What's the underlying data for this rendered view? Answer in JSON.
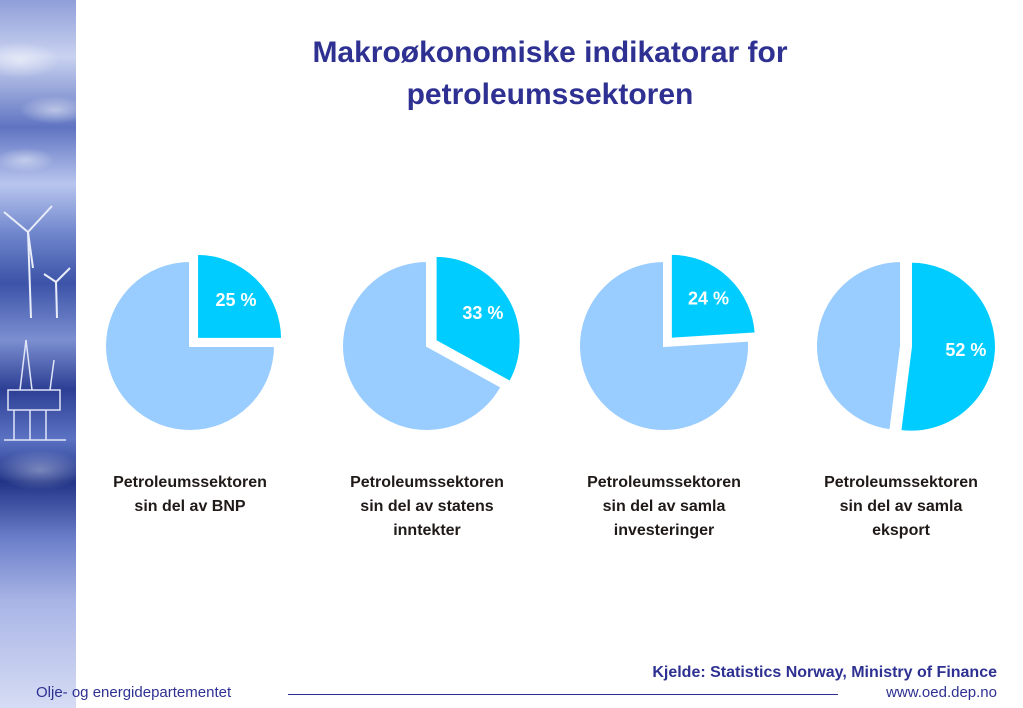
{
  "title": {
    "line1": "Makroøkonomiske indikatorar for",
    "line2": "petroleumssektoren"
  },
  "colors": {
    "title": "#2e3192",
    "highlight_slice": "#00ccff",
    "rest_slice": "#99ccff",
    "label": "#ffffff"
  },
  "chart_data": [
    {
      "type": "pie",
      "title": "",
      "caption_lines": [
        "Petroleumssektoren",
        "sin del av BNP"
      ],
      "slices": [
        {
          "label": "25 %",
          "value": 25,
          "exploded": true
        },
        {
          "label": "",
          "value": 75,
          "exploded": false
        }
      ]
    },
    {
      "type": "pie",
      "title": "",
      "caption_lines": [
        "Petroleumssektoren",
        "sin del av statens",
        "inntekter"
      ],
      "slices": [
        {
          "label": "33 %",
          "value": 33,
          "exploded": true
        },
        {
          "label": "",
          "value": 67,
          "exploded": false
        }
      ]
    },
    {
      "type": "pie",
      "title": "",
      "caption_lines": [
        "Petroleumssektoren",
        "sin del av samla",
        "investeringer"
      ],
      "slices": [
        {
          "label": "24 %",
          "value": 24,
          "exploded": true
        },
        {
          "label": "",
          "value": 76,
          "exploded": false
        }
      ]
    },
    {
      "type": "pie",
      "title": "",
      "caption_lines": [
        "Petroleumssektoren",
        "sin del av samla",
        "eksport"
      ],
      "slices": [
        {
          "label": "52 %",
          "value": 52,
          "exploded": true
        },
        {
          "label": "",
          "value": 48,
          "exploded": false
        }
      ]
    }
  ],
  "source": "Kjelde: Statistics Norway, Ministry of Finance",
  "footer": {
    "organization": "Olje- og energidepartementet",
    "url": "www.oed.dep.no"
  },
  "sidebar": {
    "icons": [
      "clouds-photo",
      "wind-turbine-icon",
      "offshore-platform-icon",
      "sea-photo"
    ]
  }
}
